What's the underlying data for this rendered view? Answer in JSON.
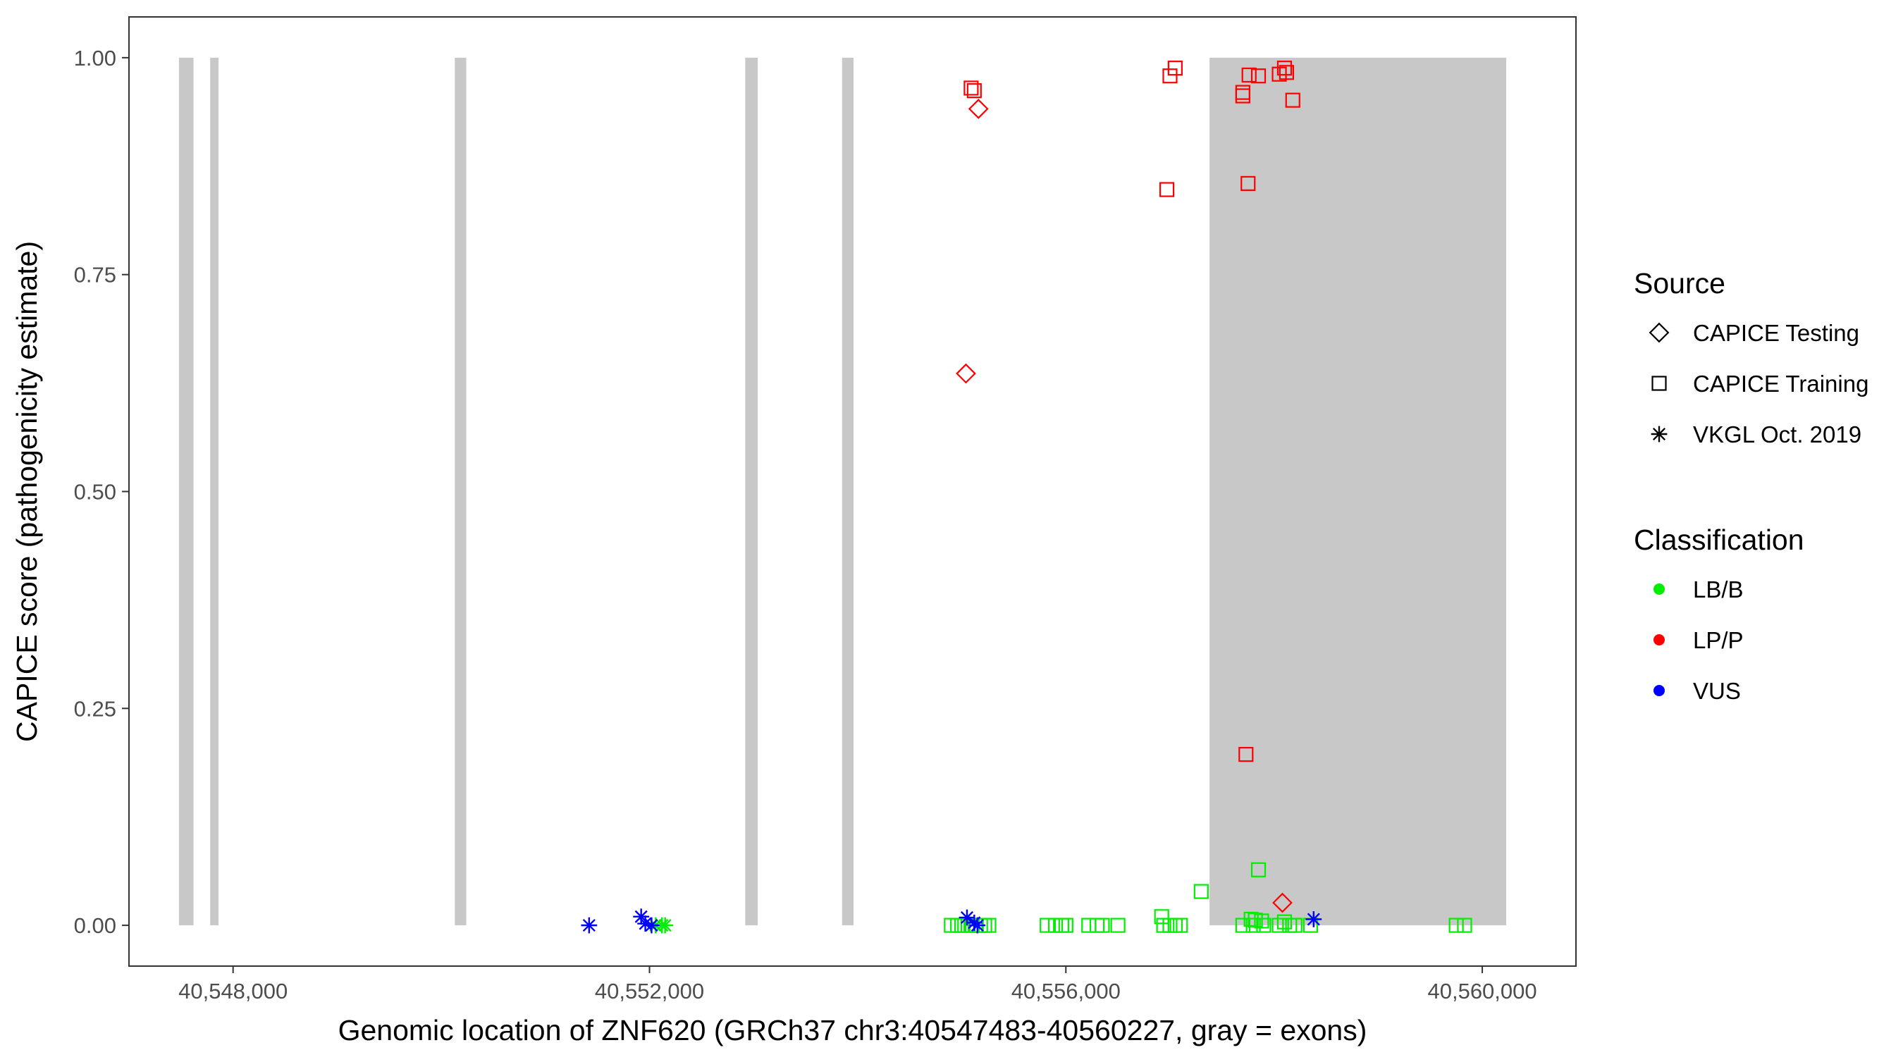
{
  "chart_data": {
    "type": "scatter",
    "title": "",
    "xlabel": "Genomic location of ZNF620 (GRCh37 chr3:40547483-40560227, gray = exons)",
    "ylabel": "CAPICE score (pathogenicity estimate)",
    "xlim": [
      40547000,
      40560900
    ],
    "ylim": [
      -0.047,
      1.047
    ],
    "x_ticks": [
      40548000,
      40552000,
      40556000,
      40560000
    ],
    "x_tick_labels": [
      "40,548,000",
      "40,552,000",
      "40,556,000",
      "40,560,000"
    ],
    "y_ticks": [
      0,
      0.25,
      0.5,
      0.75,
      1
    ],
    "y_tick_labels": [
      "0.00",
      "0.25",
      "0.50",
      "0.75",
      "1.00"
    ],
    "grid": false,
    "exons": [
      {
        "start": 40547480,
        "end": 40547620
      },
      {
        "start": 40547780,
        "end": 40547860
      },
      {
        "start": 40550130,
        "end": 40550240
      },
      {
        "start": 40552920,
        "end": 40553040
      },
      {
        "start": 40553850,
        "end": 40553960
      },
      {
        "start": 40557380,
        "end": 40560230
      }
    ],
    "exon_color": "#c8c8c8",
    "legend_source": {
      "title": "Source",
      "items": [
        {
          "label": "CAPICE Testing",
          "shape": "diamond"
        },
        {
          "label": "CAPICE Training",
          "shape": "square"
        },
        {
          "label": "VKGL Oct. 2019",
          "shape": "asterisk"
        }
      ]
    },
    "legend_classification": {
      "title": "Classification",
      "items": [
        {
          "label": "LB/B",
          "color": "#00ee00"
        },
        {
          "label": "LP/P",
          "color": "#ff0000"
        },
        {
          "label": "VUS",
          "color": "#0000ff"
        }
      ]
    },
    "legend_position": "right",
    "series": [
      {
        "source": "CAPICE Training",
        "classification": "LP/P",
        "points": [
          {
            "x": 40555090,
            "y": 0.965
          },
          {
            "x": 40555120,
            "y": 0.962
          },
          {
            "x": 40556970,
            "y": 0.848
          },
          {
            "x": 40557000,
            "y": 0.979
          },
          {
            "x": 40557050,
            "y": 0.988
          },
          {
            "x": 40557700,
            "y": 0.96
          },
          {
            "x": 40557700,
            "y": 0.956
          },
          {
            "x": 40557730,
            "y": 0.197
          },
          {
            "x": 40557750,
            "y": 0.855
          },
          {
            "x": 40557760,
            "y": 0.98
          },
          {
            "x": 40557850,
            "y": 0.979
          },
          {
            "x": 40558050,
            "y": 0.981
          },
          {
            "x": 40558100,
            "y": 0.988
          },
          {
            "x": 40558120,
            "y": 0.983
          },
          {
            "x": 40558180,
            "y": 0.951
          }
        ]
      },
      {
        "source": "CAPICE Testing",
        "classification": "LP/P",
        "points": [
          {
            "x": 40555040,
            "y": 0.636
          },
          {
            "x": 40555160,
            "y": 0.941
          },
          {
            "x": 40558080,
            "y": 0.026
          }
        ]
      },
      {
        "source": "CAPICE Training",
        "classification": "LB/B",
        "points": [
          {
            "x": 40554900,
            "y": 0.0
          },
          {
            "x": 40554960,
            "y": 0.0
          },
          {
            "x": 40555000,
            "y": 0.0
          },
          {
            "x": 40555060,
            "y": 0.0
          },
          {
            "x": 40555100,
            "y": 0.0
          },
          {
            "x": 40555140,
            "y": 0.0
          },
          {
            "x": 40555180,
            "y": 0.0
          },
          {
            "x": 40555220,
            "y": 0.0
          },
          {
            "x": 40555260,
            "y": 0.0
          },
          {
            "x": 40555820,
            "y": 0.0
          },
          {
            "x": 40555900,
            "y": 0.0
          },
          {
            "x": 40555960,
            "y": 0.0
          },
          {
            "x": 40556000,
            "y": 0.0
          },
          {
            "x": 40556220,
            "y": 0.0
          },
          {
            "x": 40556300,
            "y": 0.0
          },
          {
            "x": 40556350,
            "y": 0.0
          },
          {
            "x": 40556500,
            "y": 0.0
          },
          {
            "x": 40556920,
            "y": 0.01
          },
          {
            "x": 40556940,
            "y": 0.0
          },
          {
            "x": 40557000,
            "y": 0.0
          },
          {
            "x": 40557050,
            "y": 0.0
          },
          {
            "x": 40557100,
            "y": 0.0
          },
          {
            "x": 40557300,
            "y": 0.039
          },
          {
            "x": 40557700,
            "y": 0.0
          },
          {
            "x": 40557780,
            "y": 0.007
          },
          {
            "x": 40557800,
            "y": 0.0
          },
          {
            "x": 40557820,
            "y": 0.006
          },
          {
            "x": 40557850,
            "y": 0.064
          },
          {
            "x": 40557880,
            "y": 0.005
          },
          {
            "x": 40557900,
            "y": 0.0
          },
          {
            "x": 40558050,
            "y": 0.0
          },
          {
            "x": 40558100,
            "y": 0.004
          },
          {
            "x": 40558150,
            "y": 0.0
          },
          {
            "x": 40558200,
            "y": 0.0
          },
          {
            "x": 40558350,
            "y": 0.0
          },
          {
            "x": 40559750,
            "y": 0.0
          },
          {
            "x": 40559830,
            "y": 0.0
          }
        ]
      },
      {
        "source": "VKGL Oct. 2019",
        "classification": "LB/B",
        "points": [
          {
            "x": 40552060,
            "y": 0.0
          },
          {
            "x": 40552120,
            "y": 0.0
          },
          {
            "x": 40552150,
            "y": 0.0
          }
        ]
      },
      {
        "source": "VKGL Oct. 2019",
        "classification": "VUS",
        "points": [
          {
            "x": 40551420,
            "y": 0.0
          },
          {
            "x": 40551920,
            "y": 0.01
          },
          {
            "x": 40551960,
            "y": 0.002
          },
          {
            "x": 40552020,
            "y": 0.0
          },
          {
            "x": 40555050,
            "y": 0.009
          },
          {
            "x": 40555120,
            "y": 0.003
          },
          {
            "x": 40555150,
            "y": 0.0
          },
          {
            "x": 40558380,
            "y": 0.007
          }
        ]
      }
    ]
  }
}
